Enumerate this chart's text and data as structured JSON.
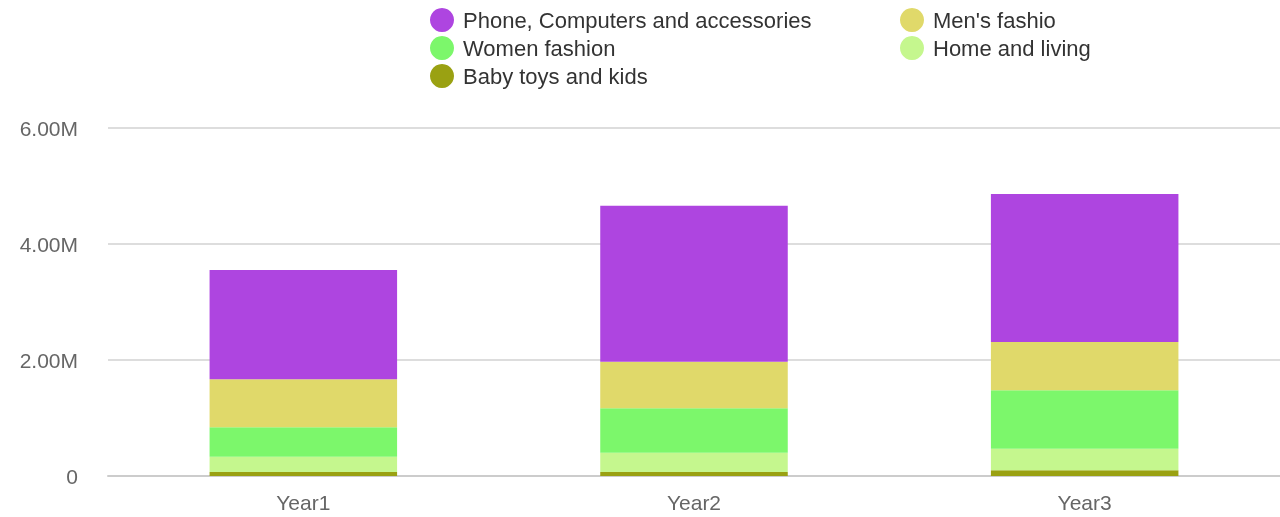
{
  "chart_data": {
    "type": "bar",
    "stacked": true,
    "categories": [
      "Year1",
      "Year2",
      "Year3"
    ],
    "series": [
      {
        "name": "Baby toys and kids",
        "color": "#9aa112",
        "values": [
          70000,
          70000,
          100000
        ]
      },
      {
        "name": "Home and living",
        "color": "#c5f78e",
        "values": [
          260000,
          330000,
          370000
        ]
      },
      {
        "name": "Women fashion",
        "color": "#7cf76b",
        "values": [
          510000,
          770000,
          1010000
        ]
      },
      {
        "name": "Men's fashio",
        "color": "#e0d96a",
        "values": [
          830000,
          800000,
          830000
        ]
      },
      {
        "name": "Phone, Computers and accessories",
        "color": "#ae45e0",
        "values": [
          1880000,
          2690000,
          2550000
        ]
      }
    ],
    "ylim": [
      0,
      6000000
    ],
    "yticks": [
      {
        "value": 0,
        "label": "0"
      },
      {
        "value": 2000000,
        "label": "2.00M"
      },
      {
        "value": 4000000,
        "label": "4.00M"
      },
      {
        "value": 6000000,
        "label": "6.00M"
      }
    ],
    "grid": "y",
    "legend": "top"
  }
}
